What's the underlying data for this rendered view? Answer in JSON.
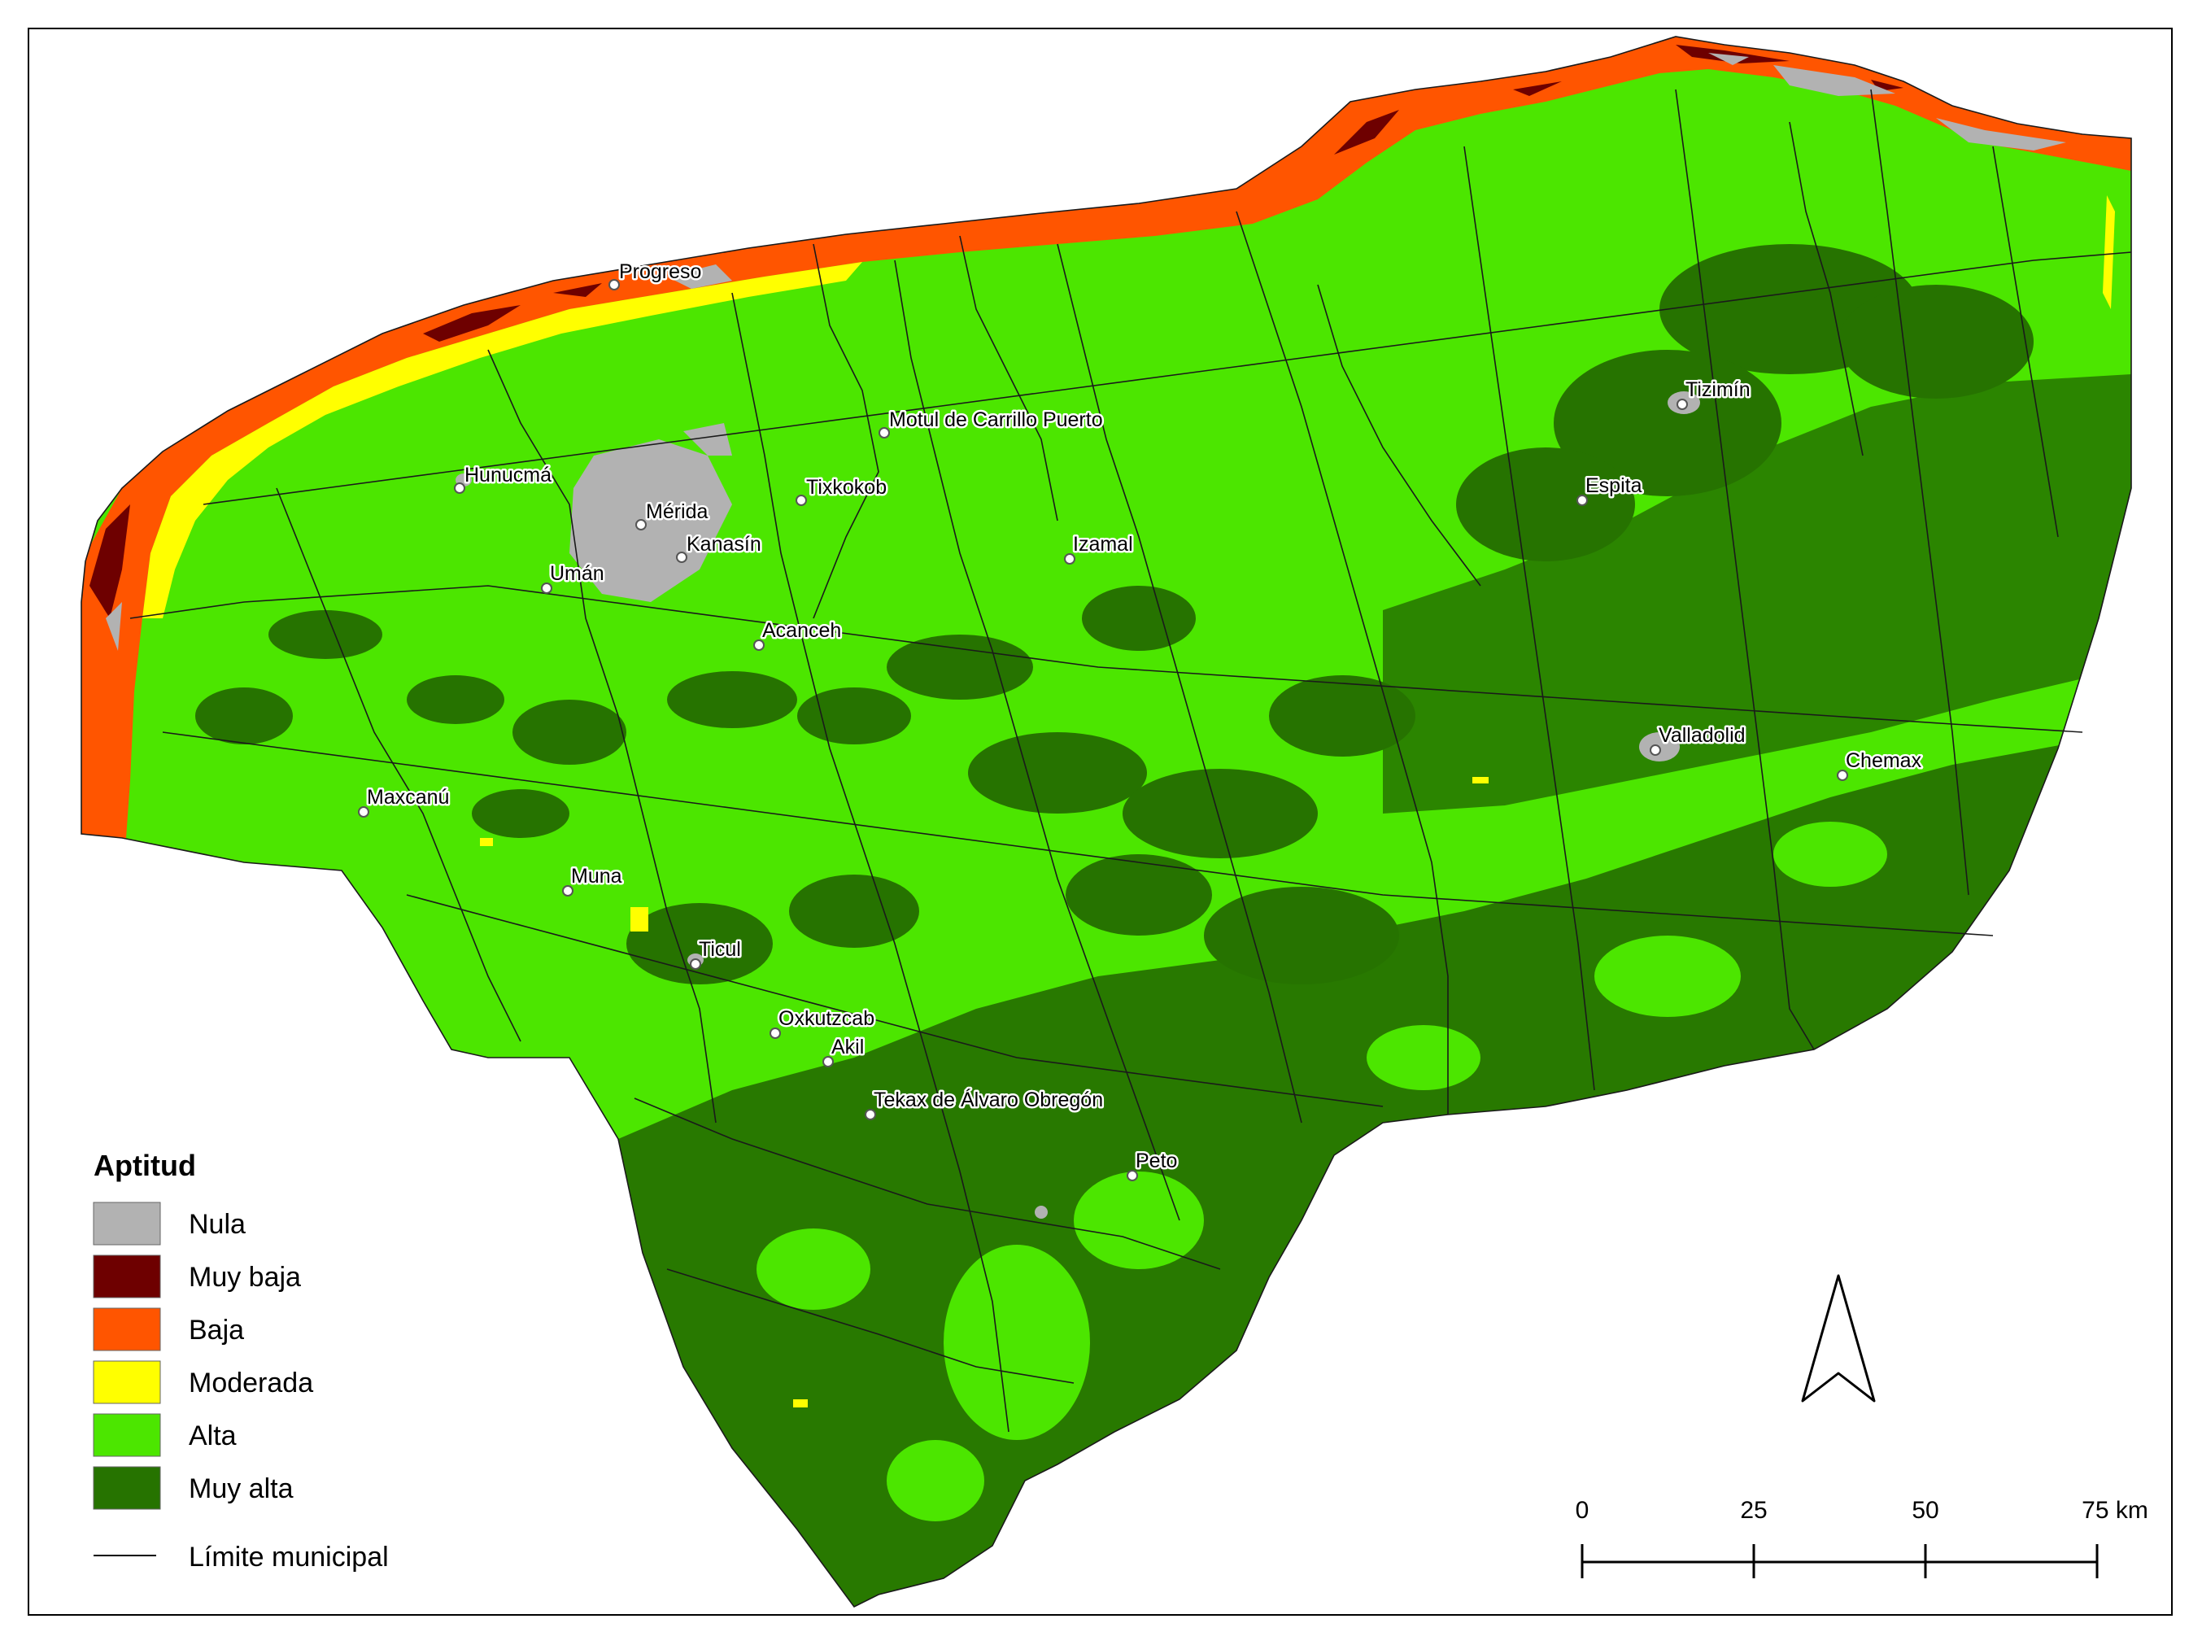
{
  "map": {
    "legend": {
      "title": "Aptitud",
      "items": [
        {
          "label": "Nula",
          "color": "#b2b2b2"
        },
        {
          "label": "Muy baja",
          "color": "#6e0000"
        },
        {
          "label": "Baja",
          "color": "#ff5500"
        },
        {
          "label": "Moderada",
          "color": "#ffff00"
        },
        {
          "label": "Alta",
          "color": "#4ce600"
        },
        {
          "label": "Muy alta",
          "color": "#267300"
        }
      ],
      "boundary_label": "Límite municipal"
    },
    "scale_bar": {
      "ticks": [
        "0",
        "25",
        "50",
        "75 km"
      ]
    },
    "north_arrow": "north-arrow-icon",
    "places": [
      {
        "name": "Progreso"
      },
      {
        "name": "Hunucmá"
      },
      {
        "name": "Mérida"
      },
      {
        "name": "Umán"
      },
      {
        "name": "Kanasín"
      },
      {
        "name": "Tixkokob"
      },
      {
        "name": "Motul de Carrillo Puerto"
      },
      {
        "name": "Izamal"
      },
      {
        "name": "Acanceh"
      },
      {
        "name": "Tizimín"
      },
      {
        "name": "Espita"
      },
      {
        "name": "Valladolid"
      },
      {
        "name": "Chemax"
      },
      {
        "name": "Maxcanú"
      },
      {
        "name": "Muna"
      },
      {
        "name": "Ticul"
      },
      {
        "name": "Oxkutzcab"
      },
      {
        "name": "Akil"
      },
      {
        "name": "Tekax de Álvaro Obregón"
      },
      {
        "name": "Peto"
      }
    ]
  }
}
